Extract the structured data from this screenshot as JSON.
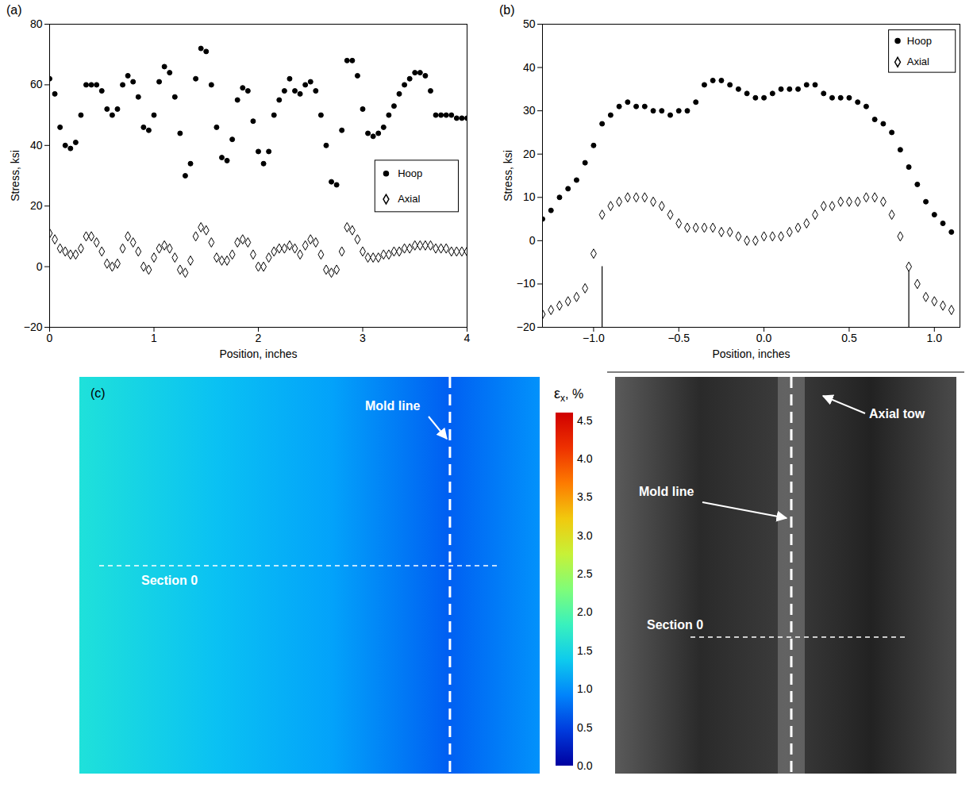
{
  "chart_data": [
    {
      "type": "scatter",
      "panel": "(a)",
      "x_label": "Position, inches",
      "y_label": "Stress, ksi",
      "x": [
        0,
        0.05,
        0.1,
        0.15,
        0.2,
        0.25,
        0.3,
        0.35,
        0.4,
        0.45,
        0.5,
        0.55,
        0.6,
        0.65,
        0.7,
        0.75,
        0.8,
        0.85,
        0.9,
        0.95,
        1,
        1.05,
        1.1,
        1.15,
        1.2,
        1.25,
        1.3,
        1.35,
        1.4,
        1.45,
        1.5,
        1.55,
        1.6,
        1.65,
        1.7,
        1.75,
        1.8,
        1.85,
        1.9,
        1.95,
        2,
        2.05,
        2.1,
        2.15,
        2.2,
        2.25,
        2.3,
        2.35,
        2.4,
        2.45,
        2.5,
        2.55,
        2.6,
        2.65,
        2.7,
        2.75,
        2.8,
        2.85,
        2.9,
        2.95,
        3,
        3.05,
        3.1,
        3.15,
        3.2,
        3.25,
        3.3,
        3.35,
        3.4,
        3.45,
        3.5,
        3.55,
        3.6,
        3.65,
        3.7,
        3.75,
        3.8,
        3.85,
        3.9,
        3.95,
        4
      ],
      "series": [
        {
          "name": "Hoop",
          "color": "#000000",
          "marker": "circle",
          "values": [
            62,
            57,
            46,
            40,
            39,
            41,
            50,
            60,
            60,
            60,
            58,
            52,
            50,
            52,
            60,
            63,
            61,
            56,
            46,
            45,
            50,
            61,
            66,
            64,
            56,
            44,
            30,
            34,
            62,
            72,
            71,
            60,
            46,
            36,
            35,
            42,
            55,
            59,
            58,
            48,
            38,
            34,
            38,
            50,
            55,
            58,
            62,
            58,
            57,
            60,
            61,
            58,
            50,
            40,
            28,
            27,
            45,
            68,
            68,
            63,
            52,
            44,
            43,
            44,
            46,
            50,
            53,
            57,
            60,
            62,
            64,
            64,
            63,
            58,
            50,
            50,
            50,
            50,
            49,
            49,
            49
          ]
        },
        {
          "name": "Axial",
          "color": "#000000",
          "marker": "open diamond",
          "values": [
            11,
            9,
            6,
            5,
            4,
            4,
            6,
            10,
            10,
            8,
            5,
            1,
            0,
            1,
            6,
            10,
            8,
            5,
            0,
            -1,
            3,
            6,
            7,
            6,
            3,
            -1,
            -2,
            2,
            10,
            13,
            12,
            8,
            3,
            2,
            2,
            4,
            8,
            9,
            8,
            4,
            0,
            0,
            3,
            5,
            6,
            6,
            7,
            6,
            4,
            7,
            9,
            8,
            4,
            -1,
            -2,
            -1,
            5,
            13,
            12,
            9,
            5,
            3,
            3,
            3,
            4,
            4,
            5,
            5,
            6,
            6,
            7,
            7,
            7,
            7,
            6,
            6,
            6,
            5,
            5,
            5,
            5
          ]
        }
      ],
      "xlim": [
        0,
        4
      ],
      "xticks": [
        0,
        1,
        2,
        3,
        4
      ],
      "ylim": [
        -20,
        80
      ],
      "yticks": [
        {
          "value": -20,
          "label": "−20"
        },
        0,
        20,
        40,
        60,
        80
      ],
      "legend": "right"
    },
    {
      "type": "scatter",
      "panel": "(b)",
      "x_label": "Position, inches",
      "y_label": "Stress, ksi",
      "x": [
        -1.3,
        -1.25,
        -1.2,
        -1.15,
        -1.1,
        -1.05,
        -1,
        -0.95,
        -0.9,
        -0.85,
        -0.8,
        -0.75,
        -0.7,
        -0.65,
        -0.6,
        -0.55,
        -0.5,
        -0.45,
        -0.4,
        -0.35,
        -0.3,
        -0.25,
        -0.2,
        -0.15,
        -0.1,
        -0.05,
        0,
        0.05,
        0.1,
        0.15,
        0.2,
        0.25,
        0.3,
        0.35,
        0.4,
        0.45,
        0.5,
        0.55,
        0.6,
        0.65,
        0.7,
        0.75,
        0.8,
        0.85,
        0.9,
        0.95,
        1,
        1.05,
        1.1
      ],
      "series": [
        {
          "name": "Hoop",
          "color": "#000000",
          "marker": "circle",
          "values": [
            5,
            7,
            10,
            12,
            14,
            18,
            22,
            27,
            29,
            31,
            32,
            31,
            31,
            30,
            30,
            29,
            30,
            30,
            32,
            36,
            37,
            37,
            36,
            35,
            34,
            33,
            33,
            34,
            35,
            35,
            35,
            36,
            36,
            34,
            33,
            33,
            33,
            32,
            31,
            28,
            27,
            25,
            21,
            17,
            13,
            9,
            6,
            4,
            2
          ]
        },
        {
          "name": "Axial",
          "color": "#000000",
          "marker": "open diamond",
          "values": [
            -17,
            -16,
            -15,
            -14,
            -13,
            -11,
            -3,
            6,
            8,
            9,
            10,
            10,
            10,
            9,
            8,
            6,
            4,
            3,
            3,
            3,
            3,
            2,
            2,
            1,
            0,
            0,
            1,
            1,
            1,
            2,
            3,
            4,
            6,
            8,
            8,
            9,
            9,
            9,
            10,
            10,
            9,
            6,
            1,
            -6,
            -10,
            -13,
            -14,
            -15,
            -16
          ]
        }
      ],
      "vertical_lines": [
        {
          "x": -0.95,
          "y1": -20,
          "y2": -6
        },
        {
          "x": 0.85,
          "y1": -20,
          "y2": -6
        }
      ],
      "xlim": [
        -1.3,
        1.15
      ],
      "xticks": [
        {
          "value": -1,
          "label": "−1.0"
        },
        {
          "value": -0.5,
          "label": "−0.5"
        },
        {
          "value": 0,
          "label": "0.0"
        },
        {
          "value": 0.5,
          "label": "0.5"
        },
        {
          "value": 1,
          "label": "1.0"
        }
      ],
      "ylim": [
        -20,
        50
      ],
      "yticks": [
        {
          "value": -20,
          "label": "−20"
        },
        {
          "value": -10,
          "label": "−10"
        },
        0,
        10,
        20,
        30,
        40,
        50
      ],
      "legend": "top-right"
    }
  ],
  "figure_c": {
    "panel": "(c)",
    "strain_map": {
      "labels": {
        "mold_line": "Mold line",
        "section": "Section 0"
      }
    },
    "colorbar": {
      "symbol": "ε",
      "subscript": "x",
      "unit": ", %",
      "range": [
        0,
        4.6
      ],
      "ticks": [
        {
          "value": 0,
          "label": "0.0"
        },
        {
          "value": 0.5,
          "label": "0.5"
        },
        {
          "value": 1,
          "label": "1.0"
        },
        {
          "value": 1.5,
          "label": "1.5"
        },
        {
          "value": 2,
          "label": "2.0"
        },
        {
          "value": 2.5,
          "label": "2.5"
        },
        {
          "value": 3,
          "label": "3.0"
        },
        {
          "value": 3.5,
          "label": "3.5"
        },
        {
          "value": 4,
          "label": "4.0"
        },
        {
          "value": 4.5,
          "label": "4.5"
        }
      ]
    },
    "photo": {
      "labels": {
        "mold_line": "Mold line",
        "section": "Section 0",
        "tow": "Axial tow"
      }
    }
  }
}
